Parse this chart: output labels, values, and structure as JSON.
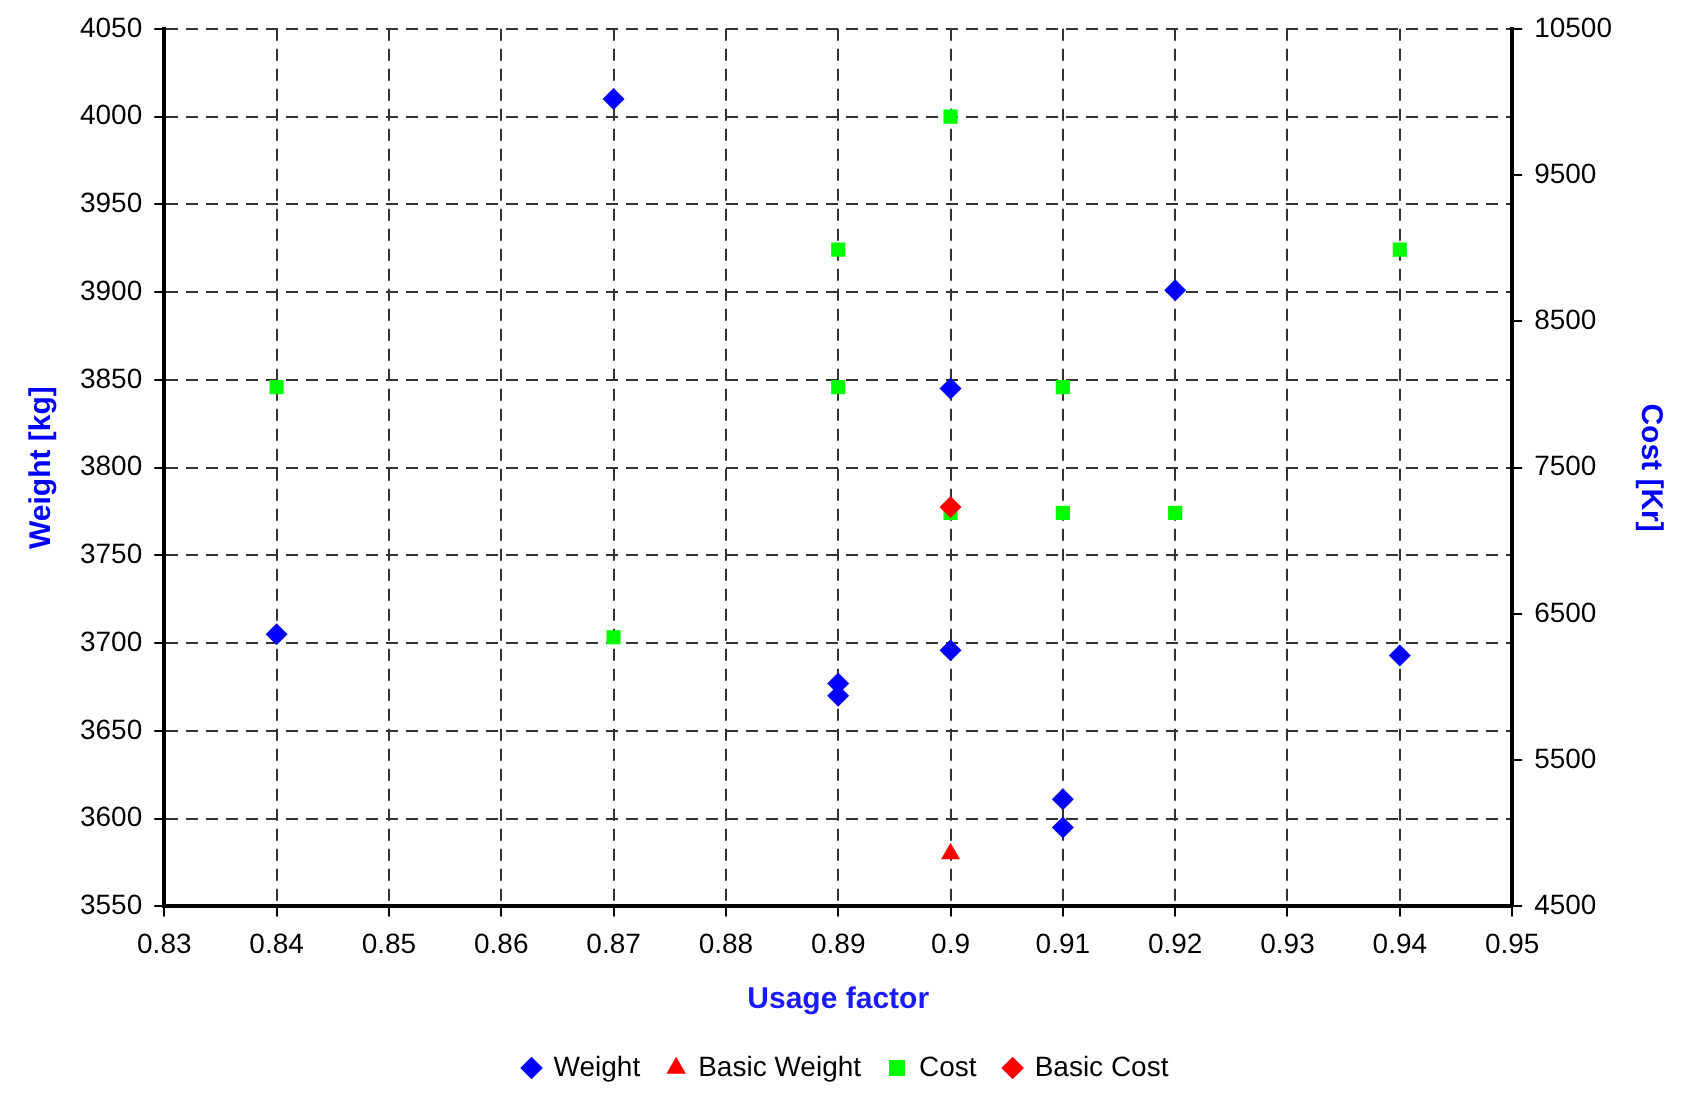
{
  "chart_data": {
    "type": "scatter",
    "xlabel": "Usage factor",
    "ylabel": "Weight [kg]",
    "y2label": "Cost [Kr]",
    "xlim": [
      0.83,
      0.95
    ],
    "xticks": [
      0.83,
      0.84,
      0.85,
      0.86,
      0.87,
      0.88,
      0.89,
      0.9,
      0.91,
      0.92,
      0.93,
      0.94,
      0.95
    ],
    "ylim": [
      3550,
      4050
    ],
    "yticks": [
      3550,
      3600,
      3650,
      3700,
      3750,
      3800,
      3850,
      3900,
      3950,
      4000,
      4050
    ],
    "y2lim": [
      4500,
      10500
    ],
    "y2ticks": [
      4500,
      5500,
      6500,
      7500,
      8500,
      9500,
      10500
    ],
    "grid": true,
    "legend": "bottom",
    "series": [
      {
        "name": "Weight",
        "color": "#0000ff",
        "marker": "diamond",
        "x": [
          0.84,
          0.87,
          0.89,
          0.89,
          0.9,
          0.9,
          0.91,
          0.91,
          0.92,
          0.94
        ],
        "values": [
          3705,
          4010,
          3677,
          3670,
          3845,
          3696,
          3611,
          3595,
          3901,
          3693
        ]
      },
      {
        "name": "Basic Weight",
        "color": "#ff0000",
        "marker": "triangle",
        "x": [
          0.9
        ],
        "values": [
          3580
        ]
      },
      {
        "name": "Cost",
        "color": "#00ff00",
        "marker": "square",
        "axis": "y2",
        "x": [
          0.84,
          0.87,
          0.89,
          0.89,
          0.9,
          0.9,
          0.91,
          0.91,
          0.92,
          0.94
        ],
        "values": [
          8050,
          6340,
          8990,
          8050,
          9900,
          7190,
          8050,
          7190,
          7190,
          8990
        ]
      },
      {
        "name": "Basic Cost",
        "color": "#ff0000",
        "marker": "diamond",
        "axis": "y2",
        "x": [
          0.9
        ],
        "values": [
          7230
        ]
      }
    ]
  }
}
